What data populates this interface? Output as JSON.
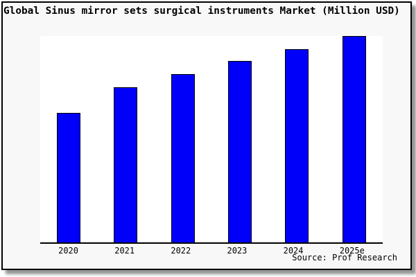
{
  "title": "Global Sinus mirror sets surgical instruments Market (Million USD)",
  "source_note": "Source: Prof Research",
  "colors": {
    "card_background": "#f8f8f8",
    "card_border": "#000000",
    "plot_background": "#ffffff",
    "bar_fill": "#0000fa",
    "bar_border": "#000000",
    "text": "#000000",
    "shadow": "#9e9e9e"
  },
  "chart_data": {
    "type": "bar",
    "title": "Global Sinus mirror sets surgical instruments Market (Million USD)",
    "categories": [
      "2020",
      "2021",
      "2022",
      "2023",
      "2024",
      "2025e"
    ],
    "values": [
      62.7,
      75.1,
      81.5,
      87.9,
      93.7,
      100
    ],
    "value_units": "relative (no y-axis labels shown; tallest bar = 100)",
    "xlabel": "",
    "ylabel": "",
    "ylim": [
      0,
      100
    ],
    "grid": false,
    "legend": false,
    "y_axis_visible": false,
    "bar_color": "#0000fa",
    "source_note": "Source: Prof Research"
  }
}
